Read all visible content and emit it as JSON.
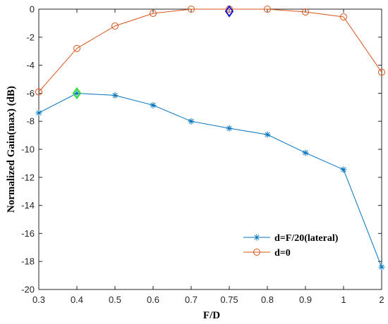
{
  "chart_data": {
    "type": "line",
    "title": "",
    "xlabel": "F/D",
    "ylabel": "Normalized Gain(max) (dB)",
    "categories": [
      "0.3",
      "0.4",
      "0.5",
      "0.6",
      "0.7",
      "0.75",
      "0.8",
      "0.9",
      "1",
      "2"
    ],
    "ylim": [
      -20,
      0
    ],
    "yticks": [
      0,
      -2,
      -4,
      -6,
      -8,
      -10,
      -12,
      -14,
      -16,
      -18,
      -20
    ],
    "grid": false,
    "legend_position": "bottom-right",
    "series": [
      {
        "name": "d=F/20(lateral)",
        "color": "#0072BD",
        "marker": "asterisk",
        "values": [
          -7.4,
          -6.0,
          -6.15,
          -6.85,
          -8.0,
          -8.5,
          -8.95,
          -10.25,
          -11.45,
          -18.4
        ]
      },
      {
        "name": "d=0",
        "color": "#D95319",
        "marker": "circle",
        "values": [
          -5.9,
          -2.8,
          -1.2,
          -0.3,
          0.0,
          0.0,
          0.0,
          -0.2,
          -0.55,
          -4.5
        ]
      }
    ],
    "highlights": [
      {
        "category": "0.4",
        "value": -6.0,
        "color": "#33dd33",
        "marker": "diamond"
      },
      {
        "category": "0.75",
        "value": -0.15,
        "color": "#1a1acc",
        "marker": "diamond"
      }
    ]
  }
}
